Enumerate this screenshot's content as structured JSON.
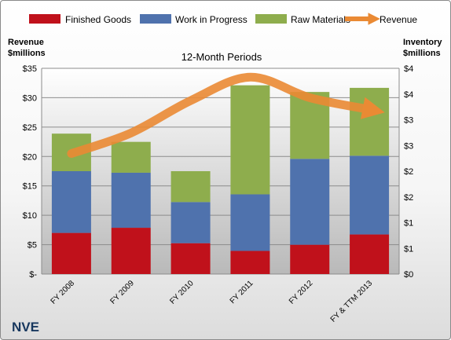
{
  "chart_data": {
    "type": "bar",
    "title": "12-Month Periods",
    "company": "NVE",
    "categories": [
      "FY 2008",
      "FY 2009",
      "FY 2010",
      "FY 2011",
      "FY 2012",
      "FY & TTM 2013"
    ],
    "series": [
      {
        "name": "Finished Goods",
        "axis": "right",
        "color": "#c0111b",
        "values": [
          0.8,
          0.9,
          0.6,
          0.45,
          0.57,
          0.77
        ]
      },
      {
        "name": "Work in Progress",
        "axis": "right",
        "color": "#4f72ad",
        "values": [
          1.2,
          1.07,
          0.8,
          1.1,
          1.67,
          1.53
        ]
      },
      {
        "name": "Raw Materials",
        "axis": "right",
        "color": "#8ead4d",
        "values": [
          0.73,
          0.6,
          0.6,
          2.12,
          1.3,
          1.32
        ]
      },
      {
        "name": "Revenue",
        "axis": "left",
        "type": "line",
        "color": "#ea8a34",
        "values": [
          20.5,
          24,
          29.5,
          33.5,
          30,
          28
        ]
      }
    ],
    "left_axis": {
      "label_line1": "Revenue",
      "label_line2": "$millions",
      "ylim": [
        0,
        35
      ],
      "ticks": [
        0,
        5,
        10,
        15,
        20,
        25,
        30,
        35
      ],
      "tick_labels": [
        "$-",
        "$5",
        "$10",
        "$15",
        "$20",
        "$25",
        "$30",
        "$35"
      ]
    },
    "right_axis": {
      "label_line1": "Inventory",
      "label_line2": "$millions",
      "ylim": [
        0,
        4
      ],
      "ticks": [
        0,
        0.5,
        1,
        1.5,
        2,
        2.5,
        3,
        3.5,
        4
      ],
      "tick_labels": [
        "$0",
        "$1",
        "$1",
        "$2",
        "$2",
        "$3",
        "$3",
        "$4",
        "$4"
      ]
    },
    "grid": true,
    "legend_position": "top",
    "plot_background": "#bfbfbf"
  }
}
